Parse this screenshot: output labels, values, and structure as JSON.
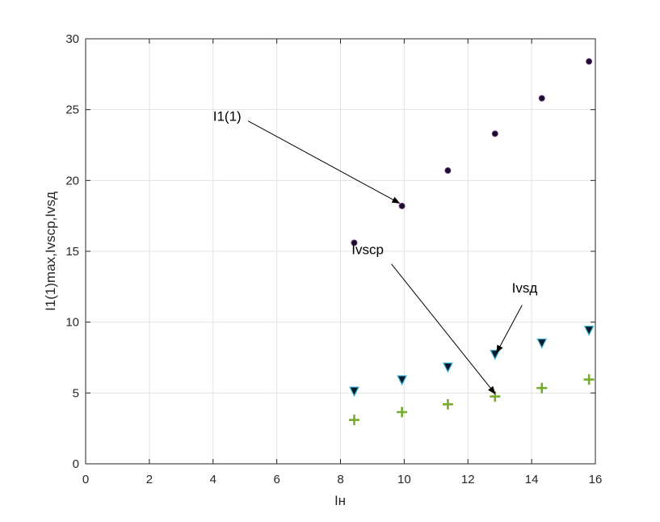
{
  "chart_data": {
    "type": "scatter",
    "title": "",
    "xlabel": "Iн",
    "ylabel": "I1(1)max,Ivscp,Ivsд",
    "xlim": [
      0,
      16
    ],
    "ylim": [
      0,
      30
    ],
    "xticks": [
      0,
      2,
      4,
      6,
      8,
      10,
      12,
      14,
      16
    ],
    "yticks": [
      0,
      5,
      10,
      15,
      20,
      25,
      30
    ],
    "grid": true,
    "series": [
      {
        "marker": "circle",
        "color": "#1a0f2e",
        "x": [
          8.43,
          9.93,
          11.37,
          12.85,
          14.32,
          15.8
        ],
        "y": [
          15.6,
          18.2,
          20.7,
          23.3,
          25.8,
          28.4
        ]
      },
      {
        "marker": "triangle-down",
        "color": "#0a1a2a",
        "edge_color": "#3fb8d8",
        "x": [
          8.43,
          9.93,
          11.37,
          12.85,
          14.32,
          15.8
        ],
        "y": [
          5.1,
          5.9,
          6.8,
          7.7,
          8.5,
          9.4
        ]
      },
      {
        "marker": "plus",
        "color": "#77ac30",
        "x": [
          8.43,
          9.93,
          11.37,
          12.85,
          14.32,
          15.8
        ],
        "y": [
          3.1,
          3.65,
          4.2,
          4.75,
          5.35,
          5.95
        ]
      }
    ],
    "annotations": [
      {
        "text": "I1(1)",
        "text_x": 4.0,
        "text_y": 24.2,
        "tail_x": 5.1,
        "tail_y": 24.2,
        "arrow_x": 9.85,
        "arrow_y": 18.4
      },
      {
        "text": "Ivscp",
        "text_x": 8.35,
        "text_y": 14.8,
        "tail_x": 9.6,
        "tail_y": 14.1,
        "arrow_x": 12.85,
        "arrow_y": 4.95
      },
      {
        "text": "Ivsд",
        "text_x": 13.38,
        "text_y": 12.1,
        "tail_x": 13.7,
        "tail_y": 11.2,
        "arrow_x": 12.9,
        "arrow_y": 7.85
      }
    ]
  }
}
